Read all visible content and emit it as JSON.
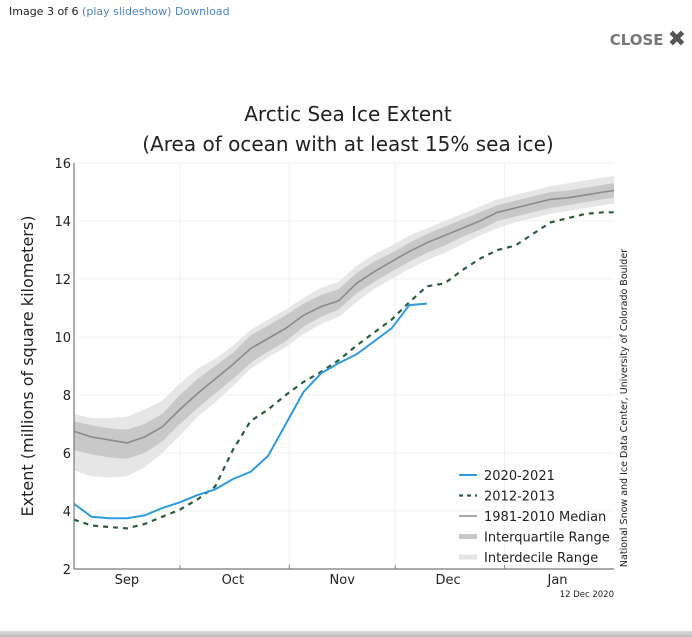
{
  "header": {
    "image_counter": "Image 3 of 6",
    "slideshow_link": "(play slideshow)",
    "download_link": "Download",
    "close_label": "CLOSE",
    "close_icon": "close-x-icon"
  },
  "chart_data": {
    "type": "line",
    "title": "Arctic Sea Ice Extent",
    "subtitle": "(Area of ocean with at least 15% sea ice)",
    "xlabel": "",
    "ylabel": "Extent (millions of square kilometers)",
    "ylim": [
      2,
      16
    ],
    "yticks": [
      "2",
      "4",
      "6",
      "8",
      "10",
      "12",
      "14",
      "16"
    ],
    "xlim_days": [
      0,
      153
    ],
    "xticks": [
      {
        "label": "Sep",
        "day": 15
      },
      {
        "label": "Oct",
        "day": 45
      },
      {
        "label": "Nov",
        "day": 76
      },
      {
        "label": "Dec",
        "day": 106
      },
      {
        "label": "Jan",
        "day": 137
      }
    ],
    "month_boundaries_days": [
      30,
      61,
      91,
      122
    ],
    "grid": true,
    "legend_position": "bottom-right",
    "credit": "National Snow and Ice Data Center, University of Colorado Boulder",
    "date_stamp": "12 Dec 2020",
    "colors": {
      "series_2020": "#2f9be0",
      "series_2012": "#2b5e3a",
      "median": "#8a8a8a",
      "interquartile": "#c8c8c8",
      "interdecile": "#e6e6e6"
    },
    "x_days": [
      0,
      5,
      10,
      15,
      20,
      25,
      30,
      35,
      40,
      45,
      50,
      55,
      60,
      65,
      70,
      75,
      80,
      85,
      90,
      95,
      100,
      105,
      110,
      115,
      120,
      125,
      130,
      135,
      140,
      145,
      150,
      153
    ],
    "series": [
      {
        "name": "2020-2021",
        "style": "solid",
        "values": [
          4.25,
          3.8,
          3.75,
          3.75,
          3.85,
          4.1,
          4.3,
          4.55,
          4.75,
          5.1,
          5.35,
          5.9,
          7.0,
          8.1,
          8.75,
          9.1,
          9.4,
          9.85,
          10.3,
          11.1,
          11.15
        ]
      },
      {
        "name": "2012-2013",
        "style": "dashed",
        "values": [
          3.7,
          3.5,
          3.45,
          3.4,
          3.55,
          3.8,
          4.05,
          4.4,
          4.85,
          6.1,
          7.1,
          7.5,
          8.0,
          8.45,
          8.8,
          9.2,
          9.7,
          10.15,
          10.6,
          11.2,
          11.75,
          11.85,
          12.3,
          12.7,
          13.0,
          13.15,
          13.55,
          13.95,
          14.1,
          14.25,
          14.3,
          14.3
        ]
      },
      {
        "name": "1981-2010 Median",
        "style": "solid",
        "values": [
          6.75,
          6.55,
          6.45,
          6.35,
          6.55,
          6.9,
          7.5,
          8.05,
          8.55,
          9.05,
          9.6,
          9.95,
          10.3,
          10.75,
          11.05,
          11.25,
          11.85,
          12.25,
          12.6,
          12.95,
          13.25,
          13.5,
          13.75,
          14.0,
          14.3,
          14.45,
          14.6,
          14.75,
          14.8,
          14.9,
          15.0,
          15.05
        ]
      }
    ],
    "bands": [
      {
        "name": "Interquartile Range",
        "lower": [
          6.1,
          5.95,
          5.85,
          5.8,
          6.0,
          6.4,
          7.0,
          7.55,
          8.05,
          8.55,
          9.1,
          9.5,
          9.85,
          10.35,
          10.7,
          10.95,
          11.5,
          11.9,
          12.25,
          12.6,
          12.9,
          13.15,
          13.45,
          13.7,
          14.0,
          14.15,
          14.3,
          14.45,
          14.55,
          14.65,
          14.75,
          14.8
        ],
        "upper": [
          7.1,
          6.95,
          6.85,
          6.8,
          7.0,
          7.35,
          8.0,
          8.55,
          9.0,
          9.45,
          10.05,
          10.4,
          10.75,
          11.15,
          11.45,
          11.65,
          12.2,
          12.6,
          12.9,
          13.25,
          13.55,
          13.8,
          14.05,
          14.3,
          14.55,
          14.7,
          14.85,
          15.0,
          15.05,
          15.15,
          15.25,
          15.3
        ]
      },
      {
        "name": "Interdecile Range",
        "lower": [
          5.4,
          5.2,
          5.15,
          5.2,
          5.5,
          6.0,
          6.6,
          7.25,
          7.75,
          8.3,
          8.9,
          9.3,
          9.65,
          10.1,
          10.45,
          10.7,
          11.2,
          11.65,
          12.0,
          12.35,
          12.65,
          12.9,
          13.2,
          13.5,
          13.75,
          13.95,
          14.1,
          14.25,
          14.35,
          14.45,
          14.55,
          14.6
        ],
        "upper": [
          7.35,
          7.2,
          7.2,
          7.25,
          7.5,
          7.8,
          8.4,
          8.9,
          9.25,
          9.7,
          10.25,
          10.6,
          10.95,
          11.35,
          11.7,
          11.9,
          12.45,
          12.85,
          13.15,
          13.5,
          13.75,
          14.0,
          14.25,
          14.5,
          14.75,
          14.9,
          15.05,
          15.2,
          15.3,
          15.4,
          15.5,
          15.55
        ]
      }
    ],
    "legend": [
      {
        "label": "2020-2021",
        "kind": "line-solid-blue"
      },
      {
        "label": "2012-2013",
        "kind": "line-dashed-green"
      },
      {
        "label": "1981-2010 Median",
        "kind": "line-solid-gray"
      },
      {
        "label": "Interquartile Range",
        "kind": "band-dark"
      },
      {
        "label": "Interdecile Range",
        "kind": "band-light"
      }
    ]
  }
}
